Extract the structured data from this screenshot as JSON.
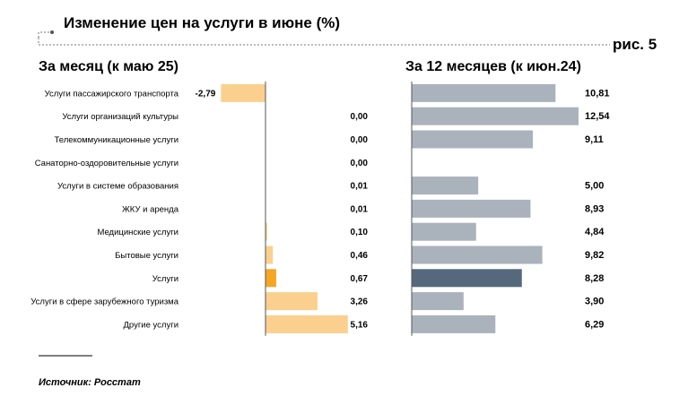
{
  "title": "Изменение цен на услуги в июне (%)",
  "figure_label": "рис. 5",
  "source": "Источник: Росстат",
  "colors": {
    "month_bar": "#fbd08e",
    "month_highlight": "#f5a623",
    "year_bar": "#aab2bb",
    "year_highlight": "#56697c",
    "axis": "#555555"
  },
  "chart_data": [
    {
      "type": "bar",
      "orientation": "horizontal",
      "title": "За месяц (к маю 25)",
      "categories": [
        "Услуги пассажирского транспорта",
        "Услуги организаций культуры",
        "Телекоммуникационные услуги",
        "Санаторно-оздоровительные услуги",
        "Услуги в системе образования",
        "ЖКУ и аренда",
        "Медицинские услуги",
        "Бытовые услуги",
        "Услуги",
        "Услуги в сфере зарубежного туризма",
        "Другие услуги"
      ],
      "values": [
        -2.79,
        0.0,
        0.0,
        0.0,
        0.01,
        0.01,
        0.1,
        0.46,
        0.67,
        3.26,
        5.16
      ],
      "labels": [
        "-2,79",
        "0,00",
        "0,00",
        "0,00",
        "0,01",
        "0,01",
        "0,10",
        "0,46",
        "0,67",
        "3,26",
        "5,16"
      ],
      "highlight": "Услуги"
    },
    {
      "type": "bar",
      "orientation": "horizontal",
      "title": "За 12 месяцев (к июн.24)",
      "categories": [
        "Услуги пассажирского транспорта",
        "Услуги организаций культуры",
        "Телекоммуникационные услуги",
        "Санаторно-оздоровительные услуги",
        "Услуги в системе образования",
        "ЖКУ и аренда",
        "Медицинские услуги",
        "Бытовые услуги",
        "Услуги",
        "Услуги в сфере зарубежного туризма",
        "Другие услуги"
      ],
      "values": [
        10.81,
        12.54,
        9.11,
        null,
        5.0,
        8.93,
        4.84,
        9.82,
        8.28,
        3.9,
        6.29
      ],
      "labels": [
        "10,81",
        "12,54",
        "9,11",
        "",
        "5,00",
        "8,93",
        "4,84",
        "9,82",
        "8,28",
        "3,90",
        "6,29"
      ],
      "highlight": "Услуги"
    }
  ]
}
